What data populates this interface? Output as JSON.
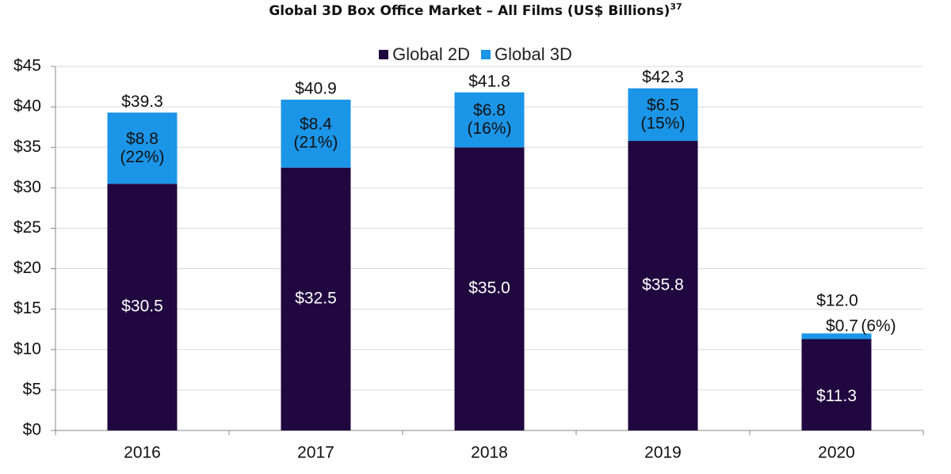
{
  "chart_data": {
    "type": "bar",
    "stacked": true,
    "title": "Global 3D Box Office Market – All Films (US$ Billions)",
    "title_superscript": "37",
    "categories": [
      "2016",
      "2017",
      "2018",
      "2019",
      "2020"
    ],
    "series": [
      {
        "name": "Global 2D",
        "color": "#20073f",
        "values": [
          30.5,
          32.5,
          35.0,
          35.8,
          11.3
        ],
        "labels": [
          "$30.5",
          "$32.5",
          "$35.0",
          "$35.8",
          "$11.3"
        ]
      },
      {
        "name": "Global 3D",
        "color": "#1b95e8",
        "values": [
          8.8,
          8.4,
          6.8,
          6.5,
          0.7
        ],
        "labels": [
          "$8.8",
          "$8.4",
          "$6.8",
          "$6.5",
          "$0.7"
        ],
        "share_labels": [
          "(22%)",
          "(21%)",
          "(16%)",
          "(15%)",
          "(6%)"
        ]
      }
    ],
    "totals": [
      39.3,
      40.9,
      41.8,
      42.3,
      12.0
    ],
    "total_labels": [
      "$39.3",
      "$40.9",
      "$41.8",
      "$42.3",
      "$12.0"
    ],
    "ylim": [
      0,
      45
    ],
    "yticks": [
      0,
      5,
      10,
      15,
      20,
      25,
      30,
      35,
      40,
      45
    ],
    "ytick_labels": [
      "$0",
      "$5",
      "$10",
      "$15",
      "$20",
      "$25",
      "$30",
      "$35",
      "$40",
      "$45"
    ],
    "grid": true,
    "legend_position": "top-center"
  }
}
